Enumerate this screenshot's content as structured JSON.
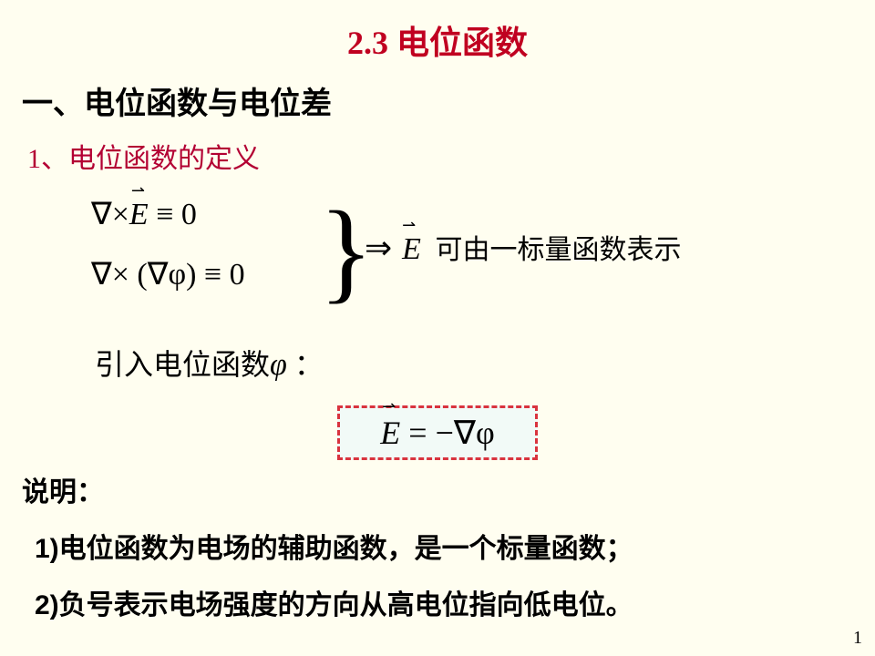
{
  "colors": {
    "title": "#c00020",
    "body": "#000000",
    "sub": "#b30033",
    "page_bg": "#fffef0",
    "box_border": "#d9333e",
    "box_bg": "#f2faf7"
  },
  "title": "2.3  电位函数",
  "section": "一、电位函数与电位差",
  "subsection": "1、电位函数的定义",
  "derivation": {
    "line1_pre": "∇×",
    "line1_E": "E",
    "line1_post": " ≡ 0",
    "line2": "∇× (∇φ) ≡ 0",
    "arrow": "⇒ ",
    "E": "E",
    "tail": " 可由一标量函数表示"
  },
  "intro_pre": "引入电位函数",
  "intro_phi": "φ",
  "intro_post": " ：",
  "boxed_E": "E",
  "boxed_rest": " = −∇φ",
  "shuoming": "说明：",
  "note1": "1)电位函数为电场的辅助函数，是一个标量函数；",
  "note2": "2)负号表示电场强度的方向从高电位指向低电位。",
  "pagenum": "1"
}
